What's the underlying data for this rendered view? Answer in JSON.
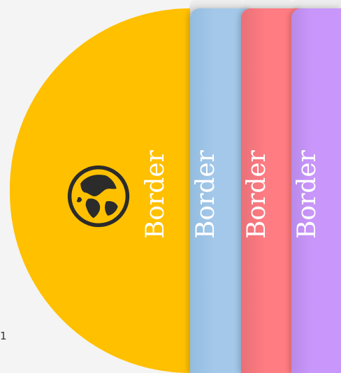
{
  "panels": {
    "yellow": {
      "label": "Border",
      "color": "#ffc000",
      "icon": "globe-icon"
    },
    "blue": {
      "label": "Border",
      "color": "#a4c8ea"
    },
    "red": {
      "label": "Border",
      "color": "#ff7c83"
    },
    "purple": {
      "label": "Border",
      "color": "#c996fb"
    }
  },
  "side_number": "1"
}
